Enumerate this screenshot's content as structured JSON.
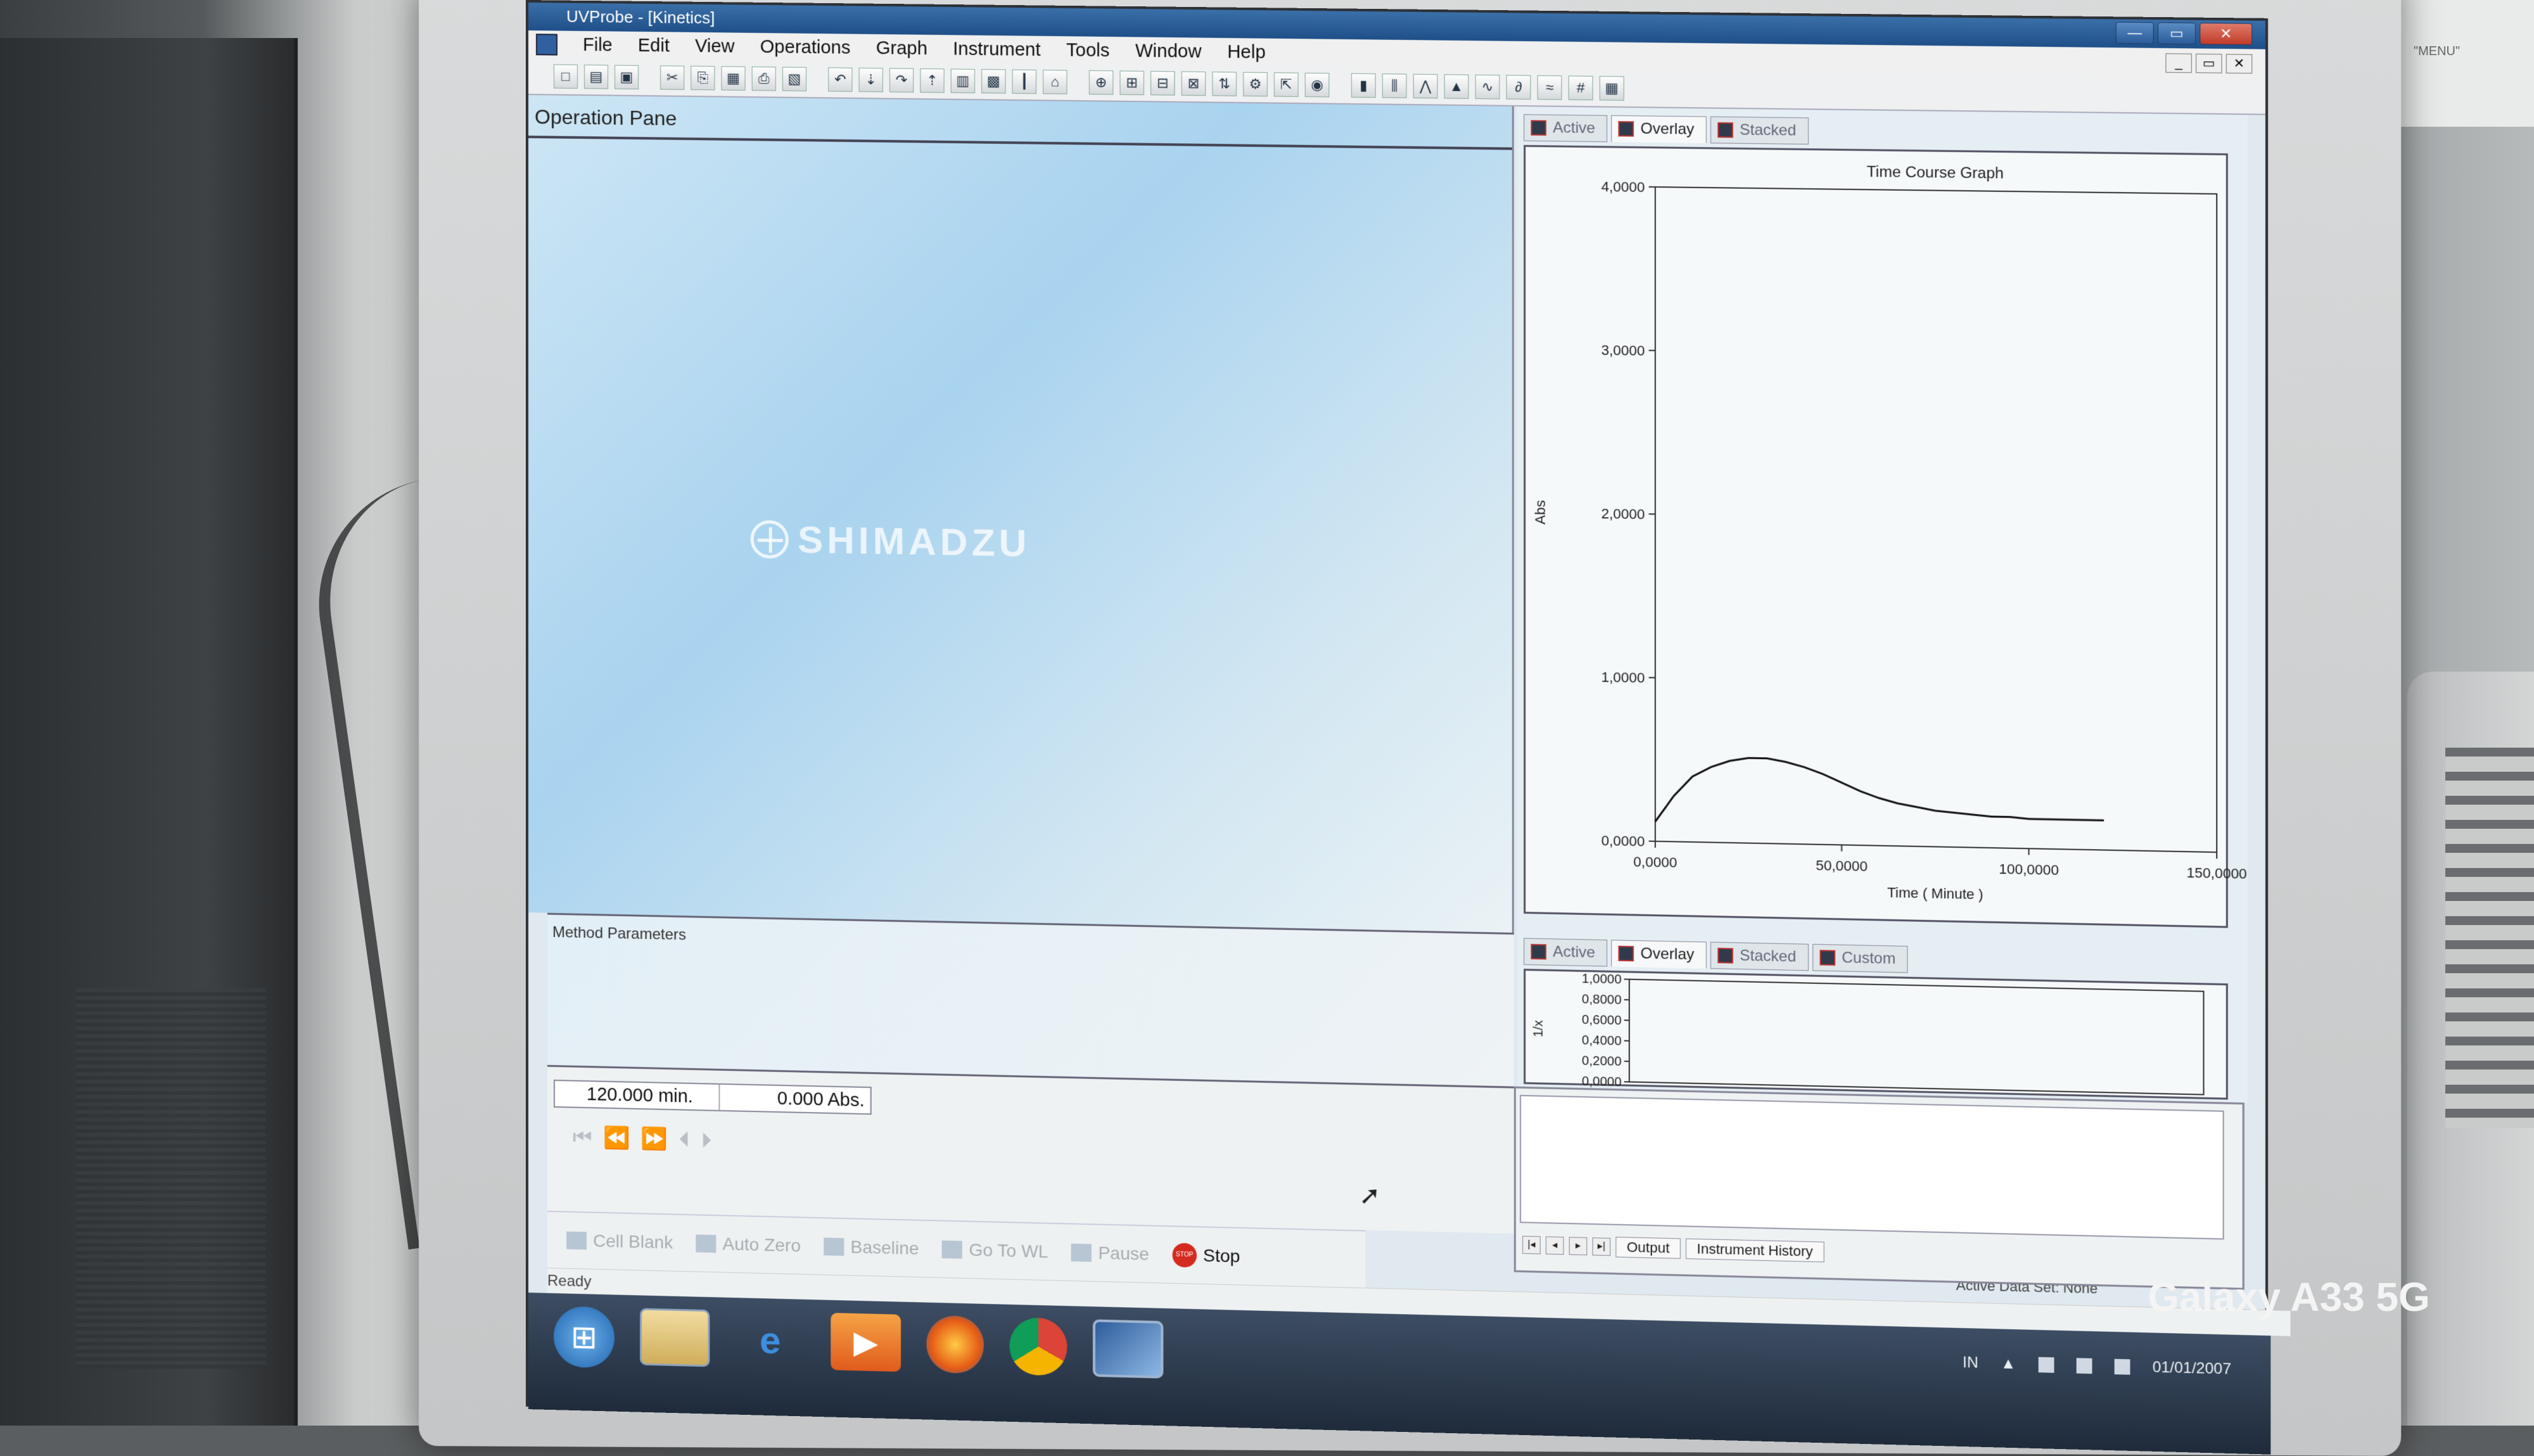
{
  "window": {
    "title": "UVProbe - [Kinetics]",
    "controls": [
      "—",
      "▭",
      "✕"
    ]
  },
  "menu": {
    "items": [
      "File",
      "Edit",
      "View",
      "Operations",
      "Graph",
      "Instrument",
      "Tools",
      "Window",
      "Help"
    ]
  },
  "toolbar": {
    "icons": [
      "new-icon",
      "open-icon",
      "save-icon",
      "cut-icon",
      "copy-icon",
      "paste-icon",
      "print-icon",
      "print-preview-icon",
      "undo-icon",
      "download-icon",
      "redo-icon",
      "upload-icon",
      "properties-icon",
      "graph-icon",
      "thermometer-icon",
      "peak-icon",
      "zoom-icon",
      "zoom-x-icon",
      "zoom-y-icon",
      "zoom-fit-icon",
      "scale-icon",
      "plot-icon",
      "export-icon",
      "record-icon",
      "spectrum-icon",
      "bar-icon",
      "peaks-icon",
      "arrow-icon",
      "tilde-icon",
      "derivative-icon",
      "smooth-icon",
      "grid-icon",
      "table-icon"
    ]
  },
  "operation_pane": {
    "title": "Operation Pane",
    "logo_text": "SHIMADZU"
  },
  "method_pane": {
    "label": "Method Parameters"
  },
  "readout": {
    "time": "120.000 min.",
    "abs": "0.000 Abs.",
    "nav": "⏮ ⏪ ⏩     ⏴ ⏵"
  },
  "bottom_buttons": [
    {
      "label": "Cell Blank",
      "enabled": false
    },
    {
      "label": "Auto Zero",
      "enabled": false
    },
    {
      "label": "Baseline",
      "enabled": false
    },
    {
      "label": "Go To WL",
      "enabled": false
    },
    {
      "label": "Pause",
      "enabled": false
    },
    {
      "label": "Stop",
      "enabled": true
    }
  ],
  "graph_tabs": [
    {
      "label": "Active",
      "selected": false
    },
    {
      "label": "Overlay",
      "selected": true
    },
    {
      "label": "Stacked",
      "selected": false
    }
  ],
  "sub_graph_tabs": [
    {
      "label": "Active",
      "selected": false
    },
    {
      "label": "Overlay",
      "selected": true
    },
    {
      "label": "Stacked",
      "selected": false
    },
    {
      "label": "Custom",
      "selected": false
    }
  ],
  "chart_data": [
    {
      "type": "line",
      "title": "Time Course Graph",
      "xlabel": "Time ( Minute )",
      "ylabel": "Abs",
      "xlim": [
        0,
        150
      ],
      "ylim": [
        0,
        4
      ],
      "xticks": [
        "0,0000",
        "50,0000",
        "100,0000",
        "150,0000"
      ],
      "yticks": [
        "0,0000",
        "1,0000",
        "2,0000",
        "3,0000",
        "4,0000"
      ],
      "series": [
        {
          "x": [
            0,
            5,
            10,
            15,
            20,
            25,
            30,
            35,
            40,
            45,
            50,
            55,
            60,
            65,
            70,
            75,
            80,
            85,
            90,
            95,
            100,
            105,
            110,
            115,
            120
          ],
          "y": [
            0.12,
            0.28,
            0.4,
            0.46,
            0.5,
            0.52,
            0.52,
            0.5,
            0.47,
            0.43,
            0.38,
            0.33,
            0.29,
            0.26,
            0.24,
            0.22,
            0.21,
            0.2,
            0.19,
            0.19,
            0.18,
            0.18,
            0.18,
            0.18,
            0.18
          ],
          "color": "#111111"
        }
      ],
      "grid": false
    },
    {
      "type": "line",
      "title": "",
      "xlabel": "",
      "ylabel": "1/x",
      "ylim": [
        0,
        1
      ],
      "yticks": [
        "0,0000",
        "0,2000",
        "0,4000",
        "0,6000",
        "0,8000",
        "1,0000"
      ],
      "series": []
    }
  ],
  "output_tabs": [
    "Output",
    "Instrument History"
  ],
  "status": {
    "ready": "Ready",
    "active_dataset": "Active Data Set: None"
  },
  "taskbar": {
    "language": "IN",
    "date": "01/01/2007"
  },
  "photo": {
    "watermark": "Galaxy A33 5G",
    "wall_note": "\"MENU\""
  }
}
